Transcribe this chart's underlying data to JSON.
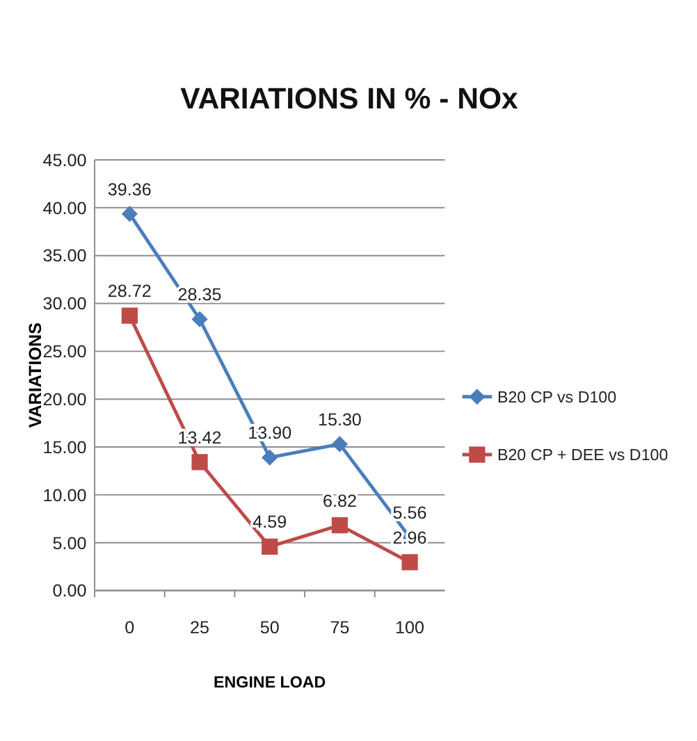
{
  "chart_data": {
    "type": "line",
    "title": "VARIATIONS IN % - NOx",
    "xlabel": "ENGINE LOAD",
    "ylabel": "VARIATIONS",
    "categories": [
      "0",
      "25",
      "50",
      "75",
      "100"
    ],
    "series": [
      {
        "name": "B20 CP vs D100",
        "color": "#4a7ebb",
        "marker": "diamond",
        "values": [
          39.36,
          28.35,
          13.9,
          15.3,
          5.56
        ],
        "value_labels": [
          "39.36",
          "28.35",
          "13.90",
          "15.30",
          "5.56"
        ]
      },
      {
        "name": "B20 CP + DEE vs D100",
        "color": "#be4b48",
        "marker": "square",
        "values": [
          28.72,
          13.42,
          4.59,
          6.82,
          2.96
        ],
        "value_labels": [
          "28.72",
          "13.42",
          "4.59",
          "6.82",
          "2.96"
        ]
      }
    ],
    "ylim": [
      0,
      45
    ],
    "yticks": [
      {
        "value": 0,
        "label": "0.00"
      },
      {
        "value": 5,
        "label": "5.00"
      },
      {
        "value": 10,
        "label": "10.00"
      },
      {
        "value": 15,
        "label": "15.00"
      },
      {
        "value": 20,
        "label": "20.00"
      },
      {
        "value": 25,
        "label": "25.00"
      },
      {
        "value": 30,
        "label": "30.00"
      },
      {
        "value": 35,
        "label": "35.00"
      },
      {
        "value": 40,
        "label": "40.00"
      },
      {
        "value": 45,
        "label": "45.00"
      }
    ],
    "grid": "y",
    "legend": "right",
    "line_style": "solid"
  }
}
